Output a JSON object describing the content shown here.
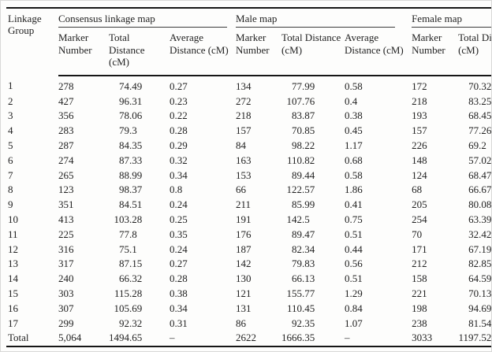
{
  "table": {
    "linkage_group_header": "Linkage Group",
    "groups": [
      {
        "label": "Consensus linkage map"
      },
      {
        "label": "Male map"
      },
      {
        "label": "Female map"
      }
    ],
    "sub_headers": [
      "Marker Number",
      "Total Distance (cM)",
      "Average Distance (cM)",
      "Marker Number",
      "Total Distance (cM)",
      "Average Distance (cM)",
      "Marker Number",
      "Total Distance (cM)"
    ],
    "rows": [
      [
        "1",
        "278",
        "74.49",
        "0.27",
        "134",
        "77.99",
        "0.58",
        "172",
        "70.32"
      ],
      [
        "2",
        "427",
        "96.31",
        "0.23",
        "272",
        "107.76",
        "0.4",
        "218",
        "83.25"
      ],
      [
        "3",
        "356",
        "78.06",
        "0.22",
        "218",
        "83.87",
        "0.38",
        "193",
        "68.45"
      ],
      [
        "4",
        "283",
        "79.3",
        "0.28",
        "157",
        "70.85",
        "0.45",
        "157",
        "77.26"
      ],
      [
        "5",
        "287",
        "84.35",
        "0.29",
        "84",
        "98.22",
        "1.17",
        "226",
        "69.2"
      ],
      [
        "6",
        "274",
        "87.33",
        "0.32",
        "163",
        "110.82",
        "0.68",
        "148",
        "57.02"
      ],
      [
        "7",
        "265",
        "88.99",
        "0.34",
        "153",
        "89.44",
        "0.58",
        "124",
        "68.47"
      ],
      [
        "8",
        "123",
        "98.37",
        "0.8",
        "66",
        "122.57",
        "1.86",
        "68",
        "66.67"
      ],
      [
        "9",
        "351",
        "84.51",
        "0.24",
        "211",
        "85.99",
        "0.41",
        "205",
        "80.08"
      ],
      [
        "10",
        "413",
        "103.28",
        "0.25",
        "191",
        "142.5",
        "0.75",
        "254",
        "63.39"
      ],
      [
        "11",
        "225",
        "77.8",
        "0.35",
        "176",
        "89.47",
        "0.51",
        "70",
        "32.42"
      ],
      [
        "12",
        "316",
        "75.1",
        "0.24",
        "187",
        "82.34",
        "0.44",
        "171",
        "67.19"
      ],
      [
        "13",
        "317",
        "87.15",
        "0.27",
        "142",
        "79.83",
        "0.56",
        "212",
        "82.85"
      ],
      [
        "14",
        "240",
        "66.32",
        "0.28",
        "130",
        "66.13",
        "0.51",
        "158",
        "64.59"
      ],
      [
        "15",
        "303",
        "115.28",
        "0.38",
        "121",
        "155.77",
        "1.29",
        "221",
        "70.13"
      ],
      [
        "16",
        "307",
        "105.69",
        "0.34",
        "131",
        "110.45",
        "0.84",
        "198",
        "94.69"
      ],
      [
        "17",
        "299",
        "92.32",
        "0.31",
        "86",
        "92.35",
        "1.07",
        "238",
        "81.54"
      ]
    ],
    "total_row": [
      "Total",
      "5,064",
      "1494.65",
      "–",
      "2622",
      "1666.35",
      "–",
      "3033",
      "1197.52"
    ]
  }
}
